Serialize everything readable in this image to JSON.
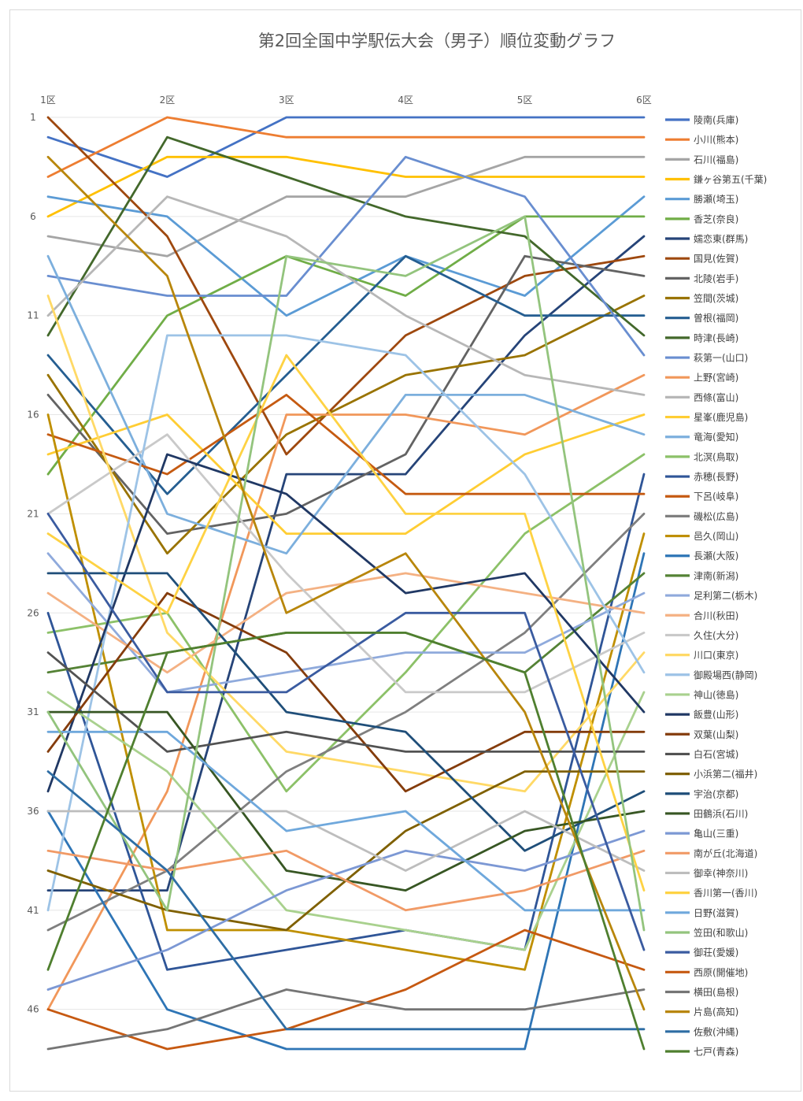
{
  "chart_data": {
    "type": "line",
    "title": "第2回全国中学駅伝大会（男子）順位変動グラフ",
    "categories": [
      "1区",
      "2区",
      "3区",
      "4区",
      "5区",
      "6区"
    ],
    "y_ticks": [
      "1",
      "6",
      "11",
      "16",
      "21",
      "26",
      "31",
      "36",
      "41",
      "46"
    ],
    "ylim": [
      1,
      48
    ],
    "y_reversed": true,
    "grid": true,
    "legend": "right",
    "series": [
      {
        "name": "陵南(兵庫)",
        "color": "#4472c4",
        "values": [
          2,
          4,
          1,
          1,
          1,
          1
        ]
      },
      {
        "name": "小川(熊本)",
        "color": "#ed7d31",
        "values": [
          4,
          1,
          2,
          2,
          2,
          2
        ]
      },
      {
        "name": "石川(福島)",
        "color": "#a5a5a5",
        "values": [
          7,
          8,
          5,
          5,
          3,
          3
        ]
      },
      {
        "name": "鎌ヶ谷第五(千葉)",
        "color": "#ffc000",
        "values": [
          6,
          3,
          3,
          4,
          4,
          4
        ]
      },
      {
        "name": "勝瀬(埼玉)",
        "color": "#5b9bd5",
        "values": [
          5,
          6,
          11,
          8,
          10,
          5
        ]
      },
      {
        "name": "香芝(奈良)",
        "color": "#70ad47",
        "values": [
          19,
          11,
          8,
          10,
          6,
          6
        ]
      },
      {
        "name": "嬬恋東(群馬)",
        "color": "#264478",
        "values": [
          40,
          40,
          19,
          19,
          12,
          7
        ]
      },
      {
        "name": "国見(佐賀)",
        "color": "#9e480e",
        "values": [
          1,
          7,
          18,
          12,
          9,
          8
        ]
      },
      {
        "name": "北陵(岩手)",
        "color": "#636363",
        "values": [
          15,
          22,
          21,
          18,
          8,
          9
        ]
      },
      {
        "name": "笠間(茨城)",
        "color": "#997300",
        "values": [
          14,
          23,
          17,
          14,
          13,
          10
        ]
      },
      {
        "name": "曽根(福岡)",
        "color": "#255e91",
        "values": [
          13,
          20,
          14,
          8,
          11,
          11
        ]
      },
      {
        "name": "時津(長崎)",
        "color": "#43682b",
        "values": [
          12,
          2,
          4,
          6,
          7,
          12
        ]
      },
      {
        "name": "萩第一(山口)",
        "color": "#698ed0",
        "values": [
          9,
          10,
          10,
          3,
          5,
          13
        ]
      },
      {
        "name": "上野(宮崎)",
        "color": "#f1975a",
        "values": [
          46,
          35,
          16,
          16,
          17,
          14
        ]
      },
      {
        "name": "西條(富山)",
        "color": "#b7b7b7",
        "values": [
          11,
          5,
          7,
          11,
          14,
          15
        ]
      },
      {
        "name": "星峯(鹿児島)",
        "color": "#ffcd33",
        "values": [
          18,
          16,
          22,
          22,
          18,
          16
        ]
      },
      {
        "name": "竜海(愛知)",
        "color": "#7cafdd",
        "values": [
          8,
          21,
          23,
          15,
          15,
          17
        ]
      },
      {
        "name": "北溟(鳥取)",
        "color": "#8cc168",
        "values": [
          27,
          26,
          35,
          29,
          22,
          18
        ]
      },
      {
        "name": "赤穂(長野)",
        "color": "#2f5597",
        "values": [
          26,
          44,
          43,
          42,
          43,
          19
        ]
      },
      {
        "name": "下呂(岐阜)",
        "color": "#c55a11",
        "values": [
          17,
          19,
          15,
          20,
          20,
          20
        ]
      },
      {
        "name": "磯松(広島)",
        "color": "#7f7f7f",
        "values": [
          42,
          39,
          34,
          31,
          27,
          21
        ]
      },
      {
        "name": "邑久(岡山)",
        "color": "#bf8f00",
        "values": [
          16,
          42,
          42,
          43,
          44,
          22
        ]
      },
      {
        "name": "長瀬(大阪)",
        "color": "#2e75b6",
        "values": [
          36,
          46,
          48,
          48,
          48,
          23
        ]
      },
      {
        "name": "津南(新潟)",
        "color": "#548235",
        "values": [
          29,
          28,
          27,
          27,
          29,
          24
        ]
      },
      {
        "name": "足利第二(栃木)",
        "color": "#8faadc",
        "values": [
          23,
          30,
          29,
          28,
          28,
          25
        ]
      },
      {
        "name": "合川(秋田)",
        "color": "#f4b183",
        "values": [
          25,
          29,
          25,
          24,
          25,
          26
        ]
      },
      {
        "name": "久住(大分)",
        "color": "#c9c9c9",
        "values": [
          21,
          17,
          24,
          30,
          30,
          27
        ]
      },
      {
        "name": "川口(東京)",
        "color": "#ffd966",
        "values": [
          10,
          27,
          33,
          34,
          35,
          28
        ]
      },
      {
        "name": "御殿場西(静岡)",
        "color": "#9dc3e6",
        "values": [
          41,
          12,
          12,
          13,
          19,
          29
        ]
      },
      {
        "name": "神山(徳島)",
        "color": "#a9d18e",
        "values": [
          30,
          34,
          41,
          42,
          43,
          30
        ]
      },
      {
        "name": "飯豊(山形)",
        "color": "#203864",
        "values": [
          35,
          18,
          20,
          25,
          24,
          31
        ]
      },
      {
        "name": "双葉(山梨)",
        "color": "#843c0c",
        "values": [
          33,
          25,
          28,
          35,
          32,
          32
        ]
      },
      {
        "name": "白石(宮城)",
        "color": "#525252",
        "values": [
          28,
          33,
          32,
          33,
          33,
          33
        ]
      },
      {
        "name": "小浜第二(福井)",
        "color": "#7f6000",
        "values": [
          39,
          41,
          42,
          37,
          34,
          34
        ]
      },
      {
        "name": "宇治(京都)",
        "color": "#1f4e79",
        "values": [
          24,
          24,
          31,
          32,
          38,
          35
        ]
      },
      {
        "name": "田鶴浜(石川)",
        "color": "#375623",
        "values": [
          31,
          31,
          39,
          40,
          37,
          36
        ]
      },
      {
        "name": "亀山(三重)",
        "color": "#7c98d4",
        "values": [
          45,
          43,
          40,
          38,
          39,
          37
        ]
      },
      {
        "name": "南が丘(北海道)",
        "color": "#f19a66",
        "values": [
          38,
          39,
          38,
          41,
          40,
          38
        ]
      },
      {
        "name": "御幸(神奈川)",
        "color": "#bdbdbd",
        "values": [
          36,
          36,
          36,
          39,
          36,
          39
        ]
      },
      {
        "name": "香川第一(香川)",
        "color": "#fed243",
        "values": [
          22,
          26,
          13,
          21,
          21,
          40
        ]
      },
      {
        "name": "日野(滋賀)",
        "color": "#6fa8dc",
        "values": [
          32,
          32,
          37,
          36,
          41,
          41
        ]
      },
      {
        "name": "笠田(和歌山)",
        "color": "#93c47d",
        "values": [
          31,
          41,
          8,
          9,
          6,
          42
        ]
      },
      {
        "name": "御荘(愛媛)",
        "color": "#3a5ba0",
        "values": [
          21,
          30,
          30,
          26,
          26,
          43
        ]
      },
      {
        "name": "西原(開催地)",
        "color": "#c65911",
        "values": [
          46,
          48,
          47,
          45,
          42,
          44
        ]
      },
      {
        "name": "横田(島根)",
        "color": "#757575",
        "values": [
          48,
          47,
          45,
          46,
          46,
          45
        ]
      },
      {
        "name": "片島(高知)",
        "color": "#b8860b",
        "values": [
          3,
          9,
          26,
          23,
          31,
          46
        ]
      },
      {
        "name": "佐敷(沖縄)",
        "color": "#2e6da4",
        "values": [
          34,
          39,
          47,
          47,
          47,
          47
        ]
      },
      {
        "name": "七戸(青森)",
        "color": "#4f7f2f",
        "values": [
          44,
          28,
          27,
          27,
          29,
          48
        ]
      }
    ]
  }
}
